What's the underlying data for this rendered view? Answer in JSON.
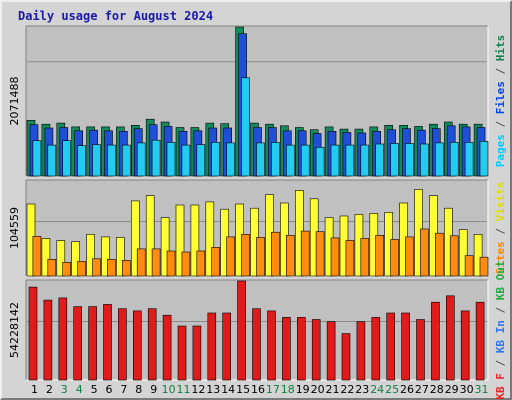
{
  "chart_data": {
    "type": "bar",
    "title": "Daily usage for August 2024",
    "days": [
      "1",
      "2",
      "3",
      "4",
      "5",
      "6",
      "7",
      "8",
      "9",
      "10",
      "11",
      "12",
      "13",
      "14",
      "15",
      "16",
      "17",
      "18",
      "19",
      "20",
      "21",
      "22",
      "23",
      "24",
      "25",
      "26",
      "27",
      "28",
      "29",
      "30",
      "31"
    ],
    "weekend_days": [
      "3",
      "4",
      "10",
      "11",
      "17",
      "18",
      "24",
      "25",
      "31"
    ],
    "panels": [
      {
        "name": "hits-files-pages",
        "y_tick_label": "2071488",
        "y_tick_value": 2071488,
        "ymax": 2720000,
        "right_legend": [
          {
            "text": "Pages",
            "color": "#00ccff"
          },
          {
            "text": " / ",
            "color": "#555555"
          },
          {
            "text": "Files",
            "color": "#0044ee"
          },
          {
            "text": " / ",
            "color": "#555555"
          },
          {
            "text": "Hits",
            "color": "#128050"
          }
        ],
        "series": [
          {
            "name": "Hits",
            "color": "#148a5c",
            "values": [
              1010000,
              940000,
              960000,
              890000,
              890000,
              890000,
              890000,
              920000,
              1030000,
              980000,
              880000,
              880000,
              960000,
              950000,
              2700000,
              960000,
              940000,
              910000,
              880000,
              840000,
              890000,
              850000,
              850000,
              890000,
              920000,
              920000,
              900000,
              940000,
              980000,
              940000,
              940000
            ]
          },
          {
            "name": "Files",
            "color": "#1f4fd6",
            "values": [
              930000,
              870000,
              880000,
              820000,
              830000,
              820000,
              810000,
              860000,
              930000,
              900000,
              810000,
              820000,
              870000,
              870000,
              2580000,
              880000,
              880000,
              820000,
              820000,
              770000,
              810000,
              790000,
              780000,
              810000,
              840000,
              860000,
              830000,
              860000,
              910000,
              890000,
              880000
            ]
          },
          {
            "name": "Pages",
            "color": "#22ccf0",
            "values": [
              640000,
              560000,
              640000,
              550000,
              570000,
              560000,
              560000,
              600000,
              650000,
              610000,
              560000,
              570000,
              610000,
              600000,
              1780000,
              600000,
              610000,
              560000,
              560000,
              520000,
              560000,
              560000,
              560000,
              580000,
              590000,
              590000,
              580000,
              600000,
              610000,
              610000,
              630000
            ]
          }
        ]
      },
      {
        "name": "visits-sites",
        "y_tick_label": "104559",
        "y_tick_value": 104559,
        "ymax": 184000,
        "right_legend": [
          {
            "text": "Sites",
            "color": "#ff8800"
          },
          {
            "text": " / ",
            "color": "#555555"
          },
          {
            "text": "Visits",
            "color": "#dddd00"
          }
        ],
        "series": [
          {
            "name": "Visits",
            "color": "#ffff33",
            "values": [
              138000,
              72000,
              68000,
              66000,
              80000,
              75000,
              74000,
              144000,
              154000,
              112000,
              136000,
              136000,
              142000,
              128000,
              138000,
              130000,
              156000,
              140000,
              164000,
              148000,
              112000,
              115000,
              118000,
              120000,
              122000,
              140000,
              166000,
              154000,
              130000,
              89000,
              80000
            ]
          },
          {
            "name": "Sites",
            "color": "#ff8c10",
            "values": [
              76000,
              32000,
              26000,
              28000,
              33000,
              32000,
              30000,
              52000,
              52000,
              48000,
              46000,
              48000,
              55000,
              75000,
              80000,
              74000,
              84000,
              78000,
              86000,
              85000,
              73000,
              68000,
              72000,
              78000,
              70000,
              75000,
              90000,
              82000,
              77000,
              39000,
              36000
            ]
          }
        ]
      },
      {
        "name": "kbytes",
        "y_tick_label": "54228142",
        "y_tick_value": 54228142,
        "ymax": 92600000,
        "right_legend": [
          {
            "text": "KB F",
            "color": "#ee2222"
          },
          {
            "text": " / ",
            "color": "#555555"
          },
          {
            "text": "KB In",
            "color": "#3377ee"
          },
          {
            "text": " / ",
            "color": "#555555"
          },
          {
            "text": "KB Out",
            "color": "#22aa44"
          }
        ],
        "series": [
          {
            "name": "KB F",
            "color": "#e01b1b",
            "values": [
              86000000,
              74000000,
              76000000,
              68000000,
              68000000,
              70000000,
              66000000,
              64000000,
              66000000,
              60000000,
              50000000,
              50000000,
              62000000,
              62000000,
              92000000,
              66000000,
              64000000,
              58000000,
              58000000,
              56000000,
              54000000,
              43000000,
              54000000,
              58000000,
              62000000,
              62000000,
              56000000,
              72000000,
              78000000,
              64000000,
              72000000
            ]
          }
        ]
      }
    ]
  }
}
